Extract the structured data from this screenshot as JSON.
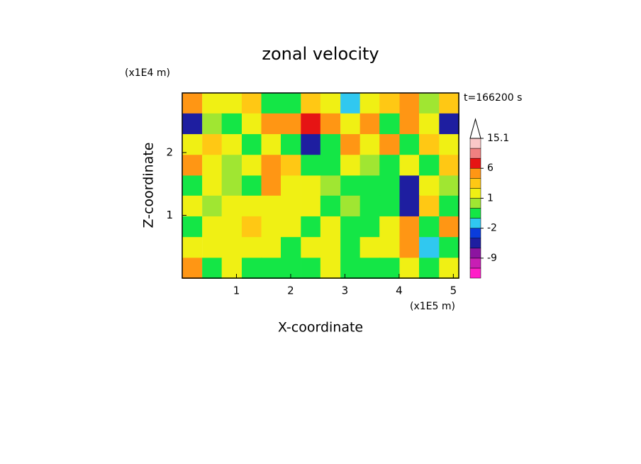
{
  "chart_data": {
    "type": "contour",
    "title": "zonal velocity",
    "y_unit": "(x1E4 m)",
    "x_unit": "(x1E5 m)",
    "xlabel": "X-coordinate",
    "ylabel": "Z-coordinate",
    "time_label": "t=166200 s",
    "xlim": [
      0,
      5.1
    ],
    "ylim": [
      0,
      2.95
    ],
    "xticks": [
      1,
      2,
      3,
      4,
      5
    ],
    "yticks": [
      1,
      2
    ],
    "field": {
      "x": [
        0.18,
        0.55,
        0.91,
        1.28,
        1.64,
        2.0,
        2.37,
        2.73,
        3.1,
        3.46,
        3.82,
        4.19,
        4.55,
        4.92
      ],
      "z": [
        2.79,
        2.46,
        2.13,
        1.8,
        1.47,
        1.15,
        0.82,
        0.49,
        0.16
      ],
      "values": [
        [
          3,
          1,
          1,
          2,
          -1,
          -1,
          2,
          1,
          -2,
          1,
          2,
          3,
          0,
          2
        ],
        [
          -6,
          0,
          -1,
          1,
          3,
          3,
          6,
          3,
          1,
          3,
          -1,
          3,
          1,
          -6
        ],
        [
          1,
          2,
          1,
          -1,
          1,
          -1,
          -5,
          -1,
          3,
          1,
          3,
          -1,
          2,
          1
        ],
        [
          3,
          1,
          0,
          1,
          3,
          2,
          -0.5,
          -1,
          1,
          0,
          -0.5,
          1,
          -1,
          2
        ],
        [
          -0.5,
          1,
          0,
          -0.5,
          3,
          1,
          1,
          0,
          -0.5,
          -1,
          -0.5,
          -5,
          1,
          0
        ],
        [
          1,
          0,
          1,
          1,
          1,
          1,
          1,
          -0.5,
          0,
          -0.5,
          -0.5,
          -6,
          2,
          -1
        ],
        [
          -0.5,
          1,
          1,
          2,
          1,
          1,
          -0.5,
          1,
          -0.5,
          -0.5,
          1,
          3,
          -1,
          3
        ],
        [
          1,
          1,
          1,
          1,
          1,
          -0.5,
          1,
          1,
          -0.5,
          1,
          1,
          3,
          -2,
          -0.5
        ],
        [
          3,
          -0.5,
          1,
          -0.5,
          -0.5,
          -0.5,
          -0.5,
          1,
          -0.5,
          -1,
          -0.5,
          1,
          -1,
          1
        ]
      ]
    },
    "colorbar": {
      "levels": [
        -16,
        -12,
        -9,
        -6,
        -4,
        -2,
        -1,
        0,
        1,
        2,
        3,
        6,
        9,
        12,
        15.1
      ],
      "colors": [
        "#ff1ec8",
        "#c81eb4",
        "#8c14a0",
        "#1e1ea0",
        "#0a3cdc",
        "#30c8f0",
        "#14e646",
        "#a0e632",
        "#f0f014",
        "#ffc814",
        "#ff9614",
        "#e61414",
        "#f08080",
        "#fac8c8"
      ],
      "ticks": [
        15.1,
        6,
        1,
        -2,
        -9
      ]
    }
  }
}
